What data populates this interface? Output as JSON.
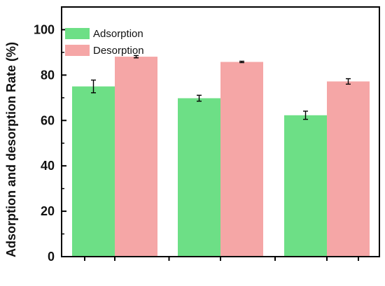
{
  "chart_data": {
    "type": "bar",
    "ylabel": "Adsorption  and desorption Rate (%)",
    "xlabel": "",
    "ylim": [
      0,
      110
    ],
    "yticks": [
      0,
      20,
      40,
      60,
      80,
      100
    ],
    "categories": [
      "",
      "",
      ""
    ],
    "series": [
      {
        "name": "Adsorption",
        "color": "#6ddf86",
        "values": [
          75.0,
          69.8,
          62.3
        ],
        "errors": [
          2.8,
          1.3,
          1.8
        ]
      },
      {
        "name": "Desorption",
        "color": "#f5a6a6",
        "values": [
          88.1,
          85.8,
          77.2
        ],
        "errors": [
          0.5,
          0.3,
          1.2
        ]
      }
    ],
    "legend": {
      "position": "top-left"
    },
    "grid": false
  }
}
